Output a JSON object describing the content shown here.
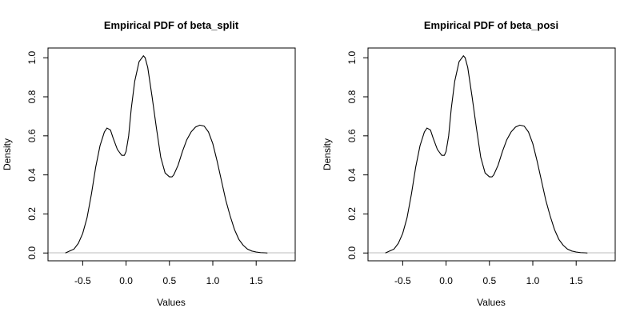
{
  "colors": {
    "curve": "#000000",
    "baseline": "#bebebe",
    "frame": "#000000",
    "background": "#ffffff"
  },
  "chart_data": [
    {
      "type": "line",
      "title": "Empirical PDF of beta_split",
      "xlabel": "Values",
      "ylabel": "Density",
      "xlim": [
        -0.9,
        1.95
      ],
      "ylim": [
        -0.04,
        1.05
      ],
      "xticks": [
        -0.5,
        0.0,
        0.5,
        1.0,
        1.5
      ],
      "xtick_labels": [
        "-0.5",
        "0.0",
        "0.5",
        "1.0",
        "1.5"
      ],
      "yticks": [
        0.0,
        0.2,
        0.4,
        0.6,
        0.8,
        1.0
      ],
      "ytick_labels": [
        "0.0",
        "0.2",
        "0.4",
        "0.6",
        "0.8",
        "1.0"
      ],
      "grid": false,
      "reference_line": {
        "y": 0.0,
        "color": "#bebebe"
      },
      "x": [
        -0.7,
        -0.65,
        -0.6,
        -0.55,
        -0.5,
        -0.45,
        -0.4,
        -0.35,
        -0.3,
        -0.25,
        -0.22,
        -0.18,
        -0.15,
        -0.1,
        -0.05,
        -0.02,
        0.0,
        0.03,
        0.06,
        0.1,
        0.15,
        0.2,
        0.22,
        0.25,
        0.3,
        0.35,
        0.4,
        0.45,
        0.5,
        0.53,
        0.55,
        0.6,
        0.65,
        0.7,
        0.75,
        0.8,
        0.85,
        0.9,
        0.95,
        1.0,
        1.05,
        1.1,
        1.15,
        1.2,
        1.25,
        1.3,
        1.35,
        1.4,
        1.45,
        1.5,
        1.55,
        1.6,
        1.63
      ],
      "y": [
        0.0,
        0.01,
        0.02,
        0.05,
        0.1,
        0.18,
        0.3,
        0.44,
        0.55,
        0.62,
        0.64,
        0.63,
        0.59,
        0.53,
        0.5,
        0.5,
        0.52,
        0.6,
        0.74,
        0.88,
        0.98,
        1.01,
        1.0,
        0.95,
        0.8,
        0.64,
        0.49,
        0.41,
        0.39,
        0.39,
        0.4,
        0.45,
        0.52,
        0.58,
        0.62,
        0.645,
        0.655,
        0.65,
        0.62,
        0.56,
        0.47,
        0.37,
        0.27,
        0.19,
        0.12,
        0.07,
        0.04,
        0.02,
        0.01,
        0.005,
        0.002,
        0.001,
        0.0
      ]
    },
    {
      "type": "line",
      "title": "Empirical PDF of beta_posi",
      "xlabel": "Values",
      "ylabel": "Density",
      "xlim": [
        -0.9,
        1.95
      ],
      "ylim": [
        -0.04,
        1.05
      ],
      "xticks": [
        -0.5,
        0.0,
        0.5,
        1.0,
        1.5
      ],
      "xtick_labels": [
        "-0.5",
        "0.0",
        "0.5",
        "1.0",
        "1.5"
      ],
      "yticks": [
        0.0,
        0.2,
        0.4,
        0.6,
        0.8,
        1.0
      ],
      "ytick_labels": [
        "0.0",
        "0.2",
        "0.4",
        "0.6",
        "0.8",
        "1.0"
      ],
      "grid": false,
      "reference_line": {
        "y": 0.0,
        "color": "#bebebe"
      },
      "x": [
        -0.7,
        -0.65,
        -0.6,
        -0.55,
        -0.5,
        -0.45,
        -0.4,
        -0.35,
        -0.3,
        -0.25,
        -0.22,
        -0.18,
        -0.15,
        -0.1,
        -0.05,
        -0.02,
        0.0,
        0.03,
        0.06,
        0.1,
        0.15,
        0.2,
        0.22,
        0.25,
        0.3,
        0.35,
        0.4,
        0.45,
        0.5,
        0.53,
        0.55,
        0.6,
        0.65,
        0.7,
        0.75,
        0.8,
        0.85,
        0.9,
        0.95,
        1.0,
        1.05,
        1.1,
        1.15,
        1.2,
        1.25,
        1.3,
        1.35,
        1.4,
        1.45,
        1.5,
        1.55,
        1.6,
        1.63
      ],
      "y": [
        0.0,
        0.01,
        0.02,
        0.05,
        0.1,
        0.18,
        0.3,
        0.44,
        0.55,
        0.62,
        0.64,
        0.63,
        0.59,
        0.53,
        0.5,
        0.5,
        0.52,
        0.6,
        0.74,
        0.88,
        0.98,
        1.01,
        1.0,
        0.95,
        0.8,
        0.64,
        0.49,
        0.41,
        0.39,
        0.39,
        0.4,
        0.45,
        0.52,
        0.58,
        0.62,
        0.645,
        0.655,
        0.65,
        0.62,
        0.56,
        0.47,
        0.37,
        0.27,
        0.19,
        0.12,
        0.07,
        0.04,
        0.02,
        0.01,
        0.005,
        0.002,
        0.001,
        0.0
      ]
    }
  ]
}
